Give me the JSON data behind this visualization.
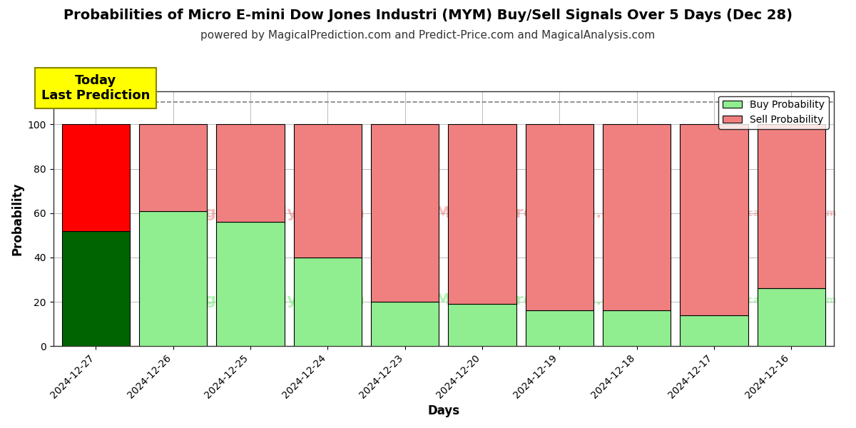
{
  "title": "Probabilities of Micro E-mini Dow Jones Industri (MYM) Buy/Sell Signals Over 5 Days (Dec 28)",
  "subtitle": "powered by MagicalPrediction.com and Predict-Price.com and MagicalAnalysis.com",
  "xlabel": "Days",
  "ylabel": "Probability",
  "categories": [
    "2024-12-27",
    "2024-12-26",
    "2024-12-25",
    "2024-12-24",
    "2024-12-23",
    "2024-12-20",
    "2024-12-19",
    "2024-12-18",
    "2024-12-17",
    "2024-12-16"
  ],
  "buy_values": [
    52,
    61,
    56,
    40,
    20,
    19,
    16,
    16,
    14,
    26
  ],
  "sell_values": [
    48,
    39,
    44,
    60,
    80,
    81,
    84,
    84,
    86,
    74
  ],
  "buy_color_today": "#006400",
  "sell_color_today": "#ff0000",
  "buy_color_normal": "#90EE90",
  "sell_color_normal": "#F08080",
  "bar_edge_color": "#000000",
  "ylim": [
    0,
    115
  ],
  "dashed_line_y": 110,
  "legend_buy_label": "Buy Probability",
  "legend_sell_label": "Sell Probability",
  "today_label": "Today\nLast Prediction",
  "background_color": "#ffffff",
  "grid_color": "#bbbbbb",
  "title_fontsize": 14,
  "subtitle_fontsize": 11,
  "axis_label_fontsize": 12,
  "tick_fontsize": 10,
  "bar_width": 0.88
}
